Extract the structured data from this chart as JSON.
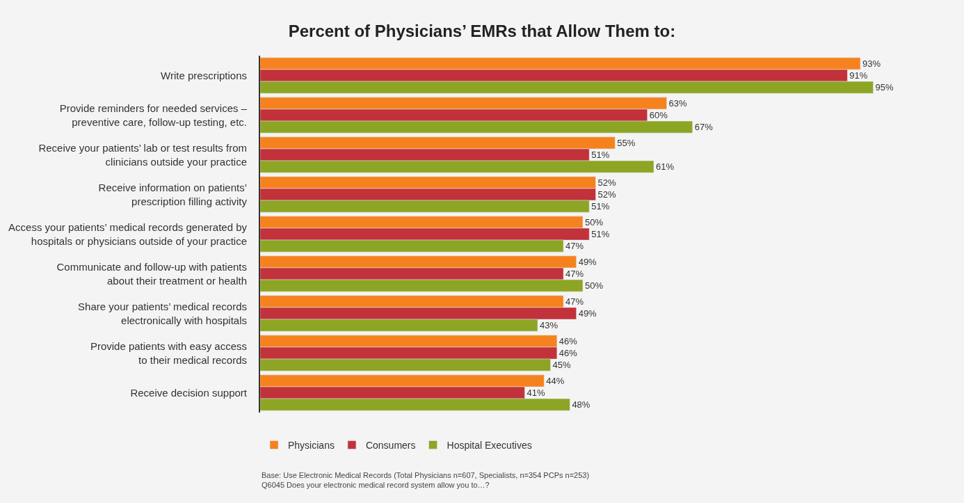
{
  "chart_data": {
    "type": "bar",
    "orientation": "horizontal",
    "title": "Percent of Physicians’ EMRs that Allow Them to:",
    "categories": [
      "Write prescriptions",
      "Provide reminders for needed services –\npreventive care, follow-up testing, etc.",
      "Receive your patients’ lab or test results from\nclinicians outside your practice",
      "Receive information on patients’\nprescription filling activity",
      "Access your patients’ medical records generated by\nhospitals or physicians outside of your practice",
      "Communicate and follow-up with patients\nabout their treatment or health",
      "Share your patients’ medical records\nelectronically with hospitals",
      "Provide patients with easy access\nto their medical records",
      "Receive decision support"
    ],
    "series": [
      {
        "name": "Physicians",
        "color": "#f5821f",
        "values": [
          93,
          63,
          55,
          52,
          50,
          49,
          47,
          46,
          44
        ],
        "value_labels": [
          "93%",
          "63%",
          "55%",
          "52%",
          "50%",
          "49%",
          "47%",
          "46%",
          "44%"
        ]
      },
      {
        "name": "Consumers",
        "color": "#c1323b",
        "values": [
          91,
          60,
          51,
          52,
          51,
          47,
          49,
          46,
          41
        ],
        "value_labels": [
          "91%",
          "60%",
          "51%",
          "52%",
          "51%",
          "47%",
          "49%",
          "46%",
          "41%"
        ]
      },
      {
        "name": "Hospital Executives",
        "color": "#8da524",
        "values": [
          95,
          67,
          61,
          51,
          47,
          50,
          43,
          45,
          48
        ],
        "value_labels": [
          "95%",
          "67%",
          "61%",
          "51%",
          "47%",
          "50%",
          "43%",
          "45%",
          "48%"
        ]
      }
    ],
    "legend": "bottom",
    "grid": false,
    "tick_labels": "y",
    "annotations": [
      "Base: Use Electronic Medical Records (Total Physicians n=607, Specialists, n=354 PCPs n=253)\nQ6045 Does your electronic medical record system allow you to…?"
    ]
  }
}
